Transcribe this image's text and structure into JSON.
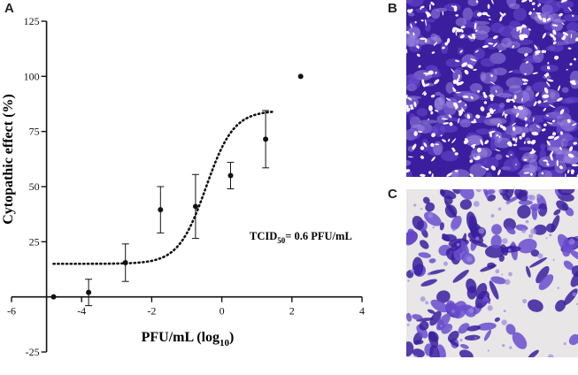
{
  "panels": {
    "a": "A",
    "b": "B",
    "c": "C"
  },
  "annotation": {
    "prefix": "TCID",
    "subscript": "50",
    "suffix": "= 0.6 PFU/mL"
  },
  "chart_data": {
    "type": "scatter",
    "xlabel": {
      "main": "PFU/mL (log",
      "sub": "10",
      "end": ")"
    },
    "ylabel": "Cytopathic effect (%)",
    "xlim": [
      -6,
      4
    ],
    "ylim": [
      -25,
      125
    ],
    "x_ticks": [
      -6,
      -4,
      -2,
      0,
      2,
      4
    ],
    "y_ticks": [
      -25,
      25,
      50,
      75,
      100,
      125
    ],
    "grid": false,
    "points": [
      {
        "x": -4.8,
        "y": 0,
        "err": 0
      },
      {
        "x": -3.8,
        "y": 2,
        "err": 6
      },
      {
        "x": -2.75,
        "y": 15.5,
        "err": 8.5
      },
      {
        "x": -1.75,
        "y": 39.5,
        "err": 10.5
      },
      {
        "x": -0.75,
        "y": 41,
        "err": 14.5
      },
      {
        "x": 0.25,
        "y": 55,
        "err": 6
      },
      {
        "x": 1.25,
        "y": 71.5,
        "err": 13
      },
      {
        "x": 2.25,
        "y": 100,
        "err": 0
      }
    ],
    "fit": {
      "type": "sigmoid",
      "bottom": 15,
      "top": 84.5,
      "log_ec50": -0.45,
      "hill": 1.1,
      "x_range": [
        -4.8,
        1.5
      ]
    }
  },
  "colors": {
    "ink": "#111111",
    "stain_dark": "#3a1e9e",
    "stain_mid": "#6a4ccf",
    "stain_light": "#9b86e0",
    "background_c": "#e8e6e6"
  }
}
